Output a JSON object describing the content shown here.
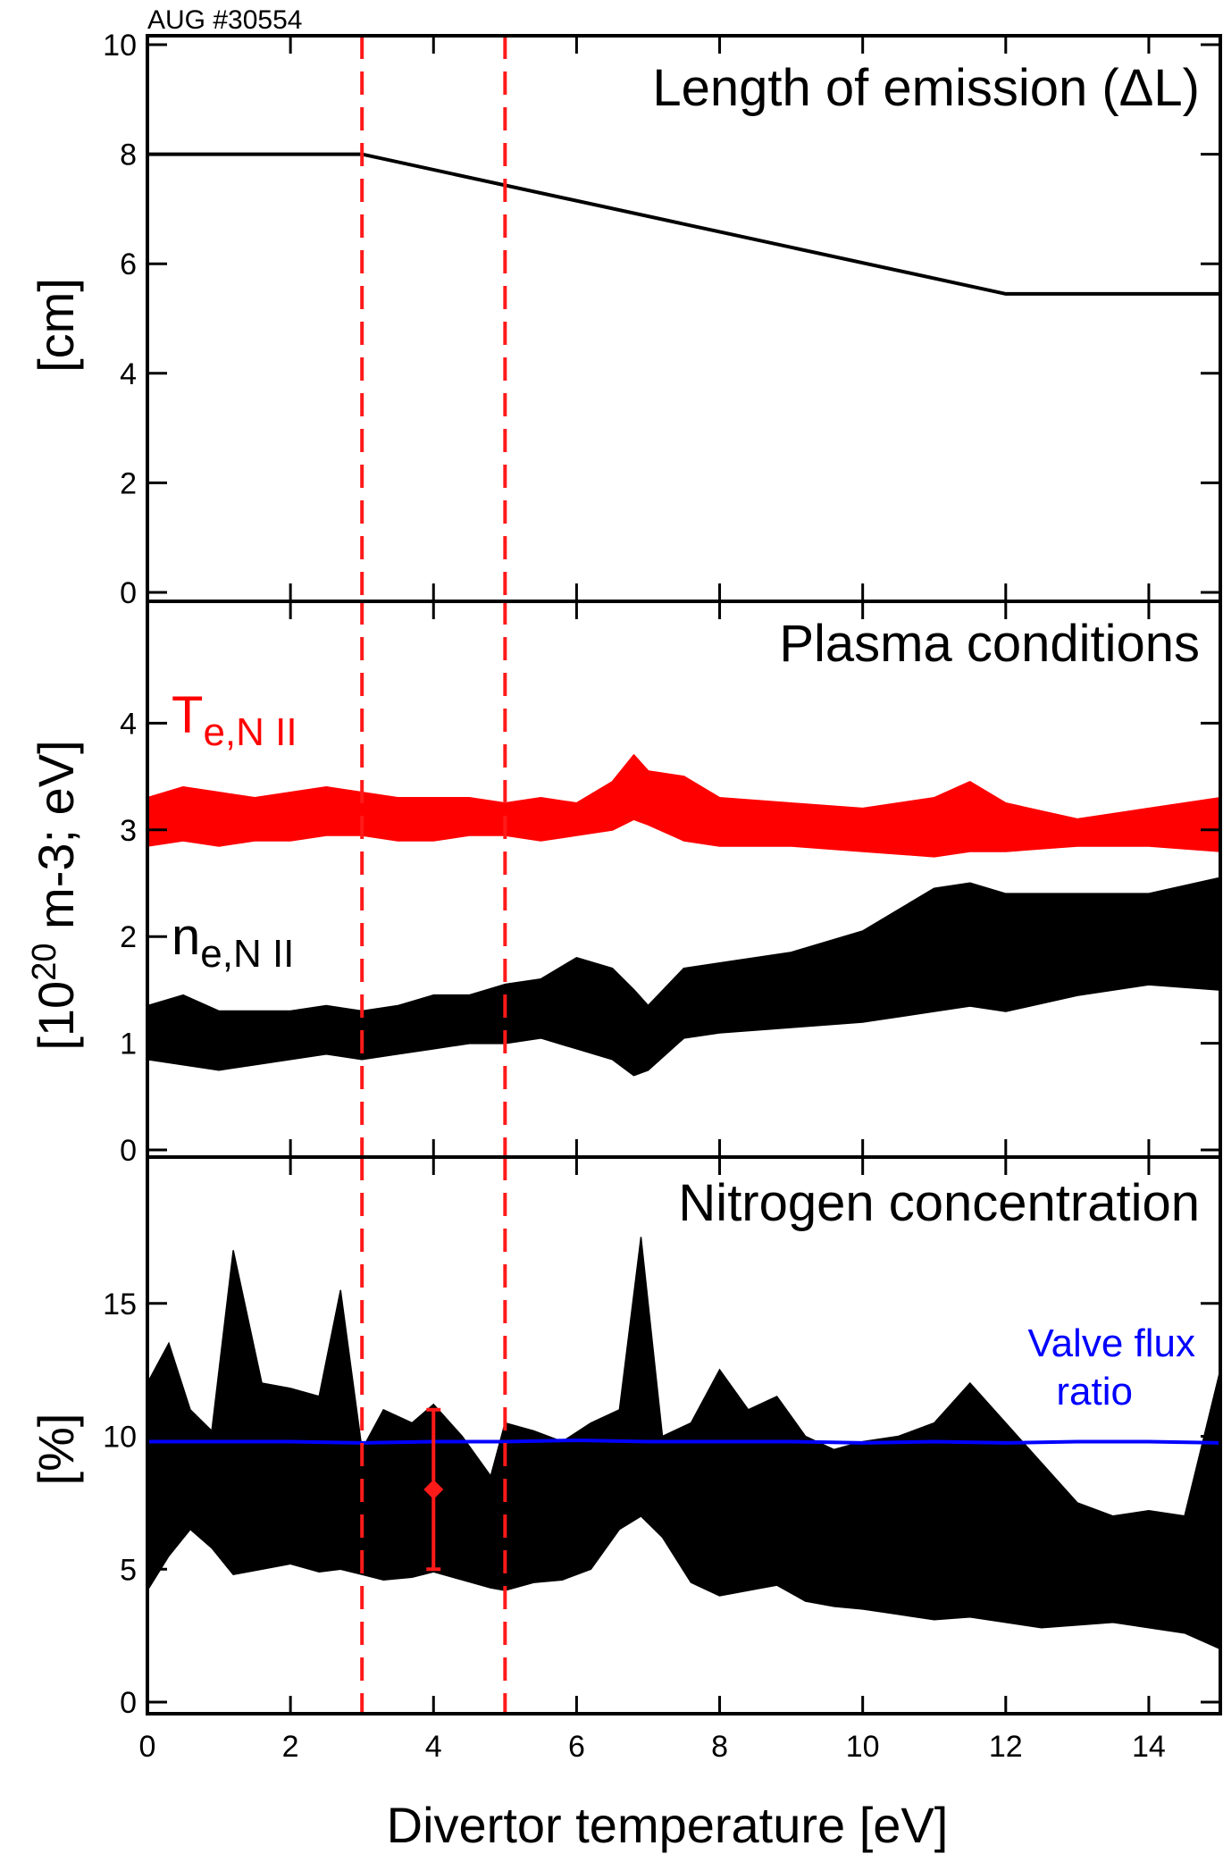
{
  "header": {
    "shot": "AUG #30554"
  },
  "chart_data": [
    {
      "type": "line",
      "title": "Length of emission (ΔL)",
      "ylabel": "[cm]",
      "xlim": [
        0,
        15
      ],
      "ylim": [
        0,
        10
      ],
      "yticks": [
        0,
        2,
        4,
        6,
        8,
        10
      ],
      "series": [
        {
          "color": "#000000",
          "x": [
            0,
            3,
            12,
            15
          ],
          "y": [
            8.0,
            8.0,
            5.45,
            5.45
          ]
        }
      ],
      "vlines": {
        "x": [
          3,
          5
        ],
        "color": "#ff1a1a",
        "style": "dashed"
      }
    },
    {
      "type": "area",
      "title": "Plasma conditions",
      "ylabel_parts": {
        "pre": "[10",
        "sup": "20",
        "post": " m-3; eV]"
      },
      "xlim": [
        0,
        15
      ],
      "ylim": [
        0,
        5
      ],
      "yticks": [
        0,
        1,
        2,
        3,
        4
      ],
      "series": [
        {
          "label_main": "T",
          "label_sub": "e,N II",
          "color": "#ff0000",
          "x": [
            0,
            0.5,
            1.0,
            1.5,
            2.0,
            2.5,
            3.0,
            3.5,
            4.0,
            4.5,
            5.0,
            5.5,
            6.0,
            6.5,
            6.8,
            7.0,
            7.5,
            8.0,
            9.0,
            10.0,
            11.0,
            11.5,
            12.0,
            13.0,
            14.0,
            15.0
          ],
          "lower": [
            2.85,
            2.9,
            2.85,
            2.9,
            2.9,
            2.95,
            2.95,
            2.9,
            2.9,
            2.95,
            2.95,
            2.9,
            2.95,
            3.0,
            3.1,
            3.05,
            2.9,
            2.85,
            2.85,
            2.8,
            2.75,
            2.8,
            2.8,
            2.85,
            2.85,
            2.8
          ],
          "upper": [
            3.3,
            3.4,
            3.35,
            3.3,
            3.35,
            3.4,
            3.35,
            3.3,
            3.3,
            3.3,
            3.25,
            3.3,
            3.25,
            3.45,
            3.7,
            3.55,
            3.5,
            3.3,
            3.25,
            3.2,
            3.3,
            3.45,
            3.25,
            3.1,
            3.2,
            3.3
          ]
        },
        {
          "label_main": "n",
          "label_sub": "e,N II",
          "color": "#000000",
          "x": [
            0,
            0.5,
            1.0,
            1.5,
            2.0,
            2.5,
            3.0,
            3.5,
            4.0,
            4.5,
            5.0,
            5.5,
            6.0,
            6.5,
            6.8,
            7.0,
            7.5,
            8.0,
            9.0,
            10.0,
            11.0,
            11.5,
            12.0,
            13.0,
            14.0,
            15.0
          ],
          "lower": [
            0.85,
            0.8,
            0.75,
            0.8,
            0.85,
            0.9,
            0.85,
            0.9,
            0.95,
            1.0,
            1.0,
            1.05,
            0.95,
            0.85,
            0.7,
            0.75,
            1.05,
            1.1,
            1.15,
            1.2,
            1.3,
            1.35,
            1.3,
            1.45,
            1.55,
            1.5
          ],
          "upper": [
            1.35,
            1.45,
            1.3,
            1.3,
            1.3,
            1.35,
            1.3,
            1.35,
            1.45,
            1.45,
            1.55,
            1.6,
            1.8,
            1.7,
            1.5,
            1.35,
            1.7,
            1.75,
            1.85,
            2.05,
            2.45,
            2.5,
            2.4,
            2.4,
            2.4,
            2.55
          ]
        }
      ],
      "vlines": {
        "x": [
          3,
          5
        ],
        "color": "#ff1a1a",
        "style": "dashed"
      }
    },
    {
      "type": "area",
      "title": "Nitrogen concentration",
      "ylabel": "[%]",
      "xlim": [
        0,
        15
      ],
      "ylim": [
        0,
        20
      ],
      "yticks": [
        0,
        5,
        10,
        15
      ],
      "band": {
        "color": "#000000",
        "x": [
          0,
          0.3,
          0.6,
          0.9,
          1.2,
          1.6,
          2.0,
          2.4,
          2.7,
          3.0,
          3.3,
          3.7,
          4.0,
          4.4,
          4.8,
          5.0,
          5.4,
          5.8,
          6.2,
          6.6,
          6.9,
          7.2,
          7.6,
          8.0,
          8.4,
          8.8,
          9.2,
          9.6,
          10.0,
          10.5,
          11.0,
          11.5,
          12.0,
          12.5,
          13.0,
          13.5,
          14.0,
          14.5,
          15.0
        ],
        "lower": [
          4.2,
          5.5,
          6.5,
          5.8,
          4.8,
          5.0,
          5.2,
          4.9,
          5.0,
          4.8,
          4.6,
          4.7,
          4.9,
          4.6,
          4.3,
          4.2,
          4.5,
          4.6,
          5.0,
          6.5,
          7.0,
          6.2,
          4.5,
          4.0,
          4.2,
          4.4,
          3.8,
          3.6,
          3.5,
          3.3,
          3.1,
          3.2,
          3.0,
          2.8,
          2.9,
          3.0,
          2.8,
          2.6,
          2.0
        ],
        "upper": [
          12.0,
          13.5,
          11.0,
          10.2,
          17.0,
          12.0,
          11.8,
          11.5,
          15.5,
          9.5,
          11.0,
          10.5,
          11.2,
          10.0,
          8.5,
          10.5,
          10.2,
          9.8,
          10.5,
          11.0,
          17.5,
          10.0,
          10.5,
          12.5,
          11.0,
          11.5,
          10.0,
          9.5,
          9.8,
          10.0,
          10.5,
          12.0,
          10.5,
          9.0,
          7.5,
          7.0,
          7.2,
          7.0,
          12.5
        ]
      },
      "errorbar": {
        "x": 4.0,
        "y": 8.0,
        "ylow": 5.0,
        "yhigh": 11.0,
        "color": "#ff1a1a"
      },
      "series": [
        {
          "name": "Valve flux ratio",
          "label_line1": "Valve flux",
          "label_line2": "ratio",
          "color": "#0000ff",
          "x": [
            0,
            1,
            2,
            3,
            4,
            5,
            6,
            7,
            8,
            9,
            10,
            11,
            12,
            13,
            14,
            15
          ],
          "y": [
            9.8,
            9.8,
            9.8,
            9.75,
            9.8,
            9.8,
            9.85,
            9.8,
            9.8,
            9.8,
            9.75,
            9.8,
            9.75,
            9.8,
            9.8,
            9.75
          ]
        }
      ],
      "vlines": {
        "x": [
          3,
          5
        ],
        "color": "#ff1a1a",
        "style": "dashed"
      }
    }
  ],
  "xaxis": {
    "label": "Divertor temperature [eV]",
    "ticks": [
      0,
      2,
      4,
      6,
      8,
      10,
      12,
      14
    ]
  }
}
